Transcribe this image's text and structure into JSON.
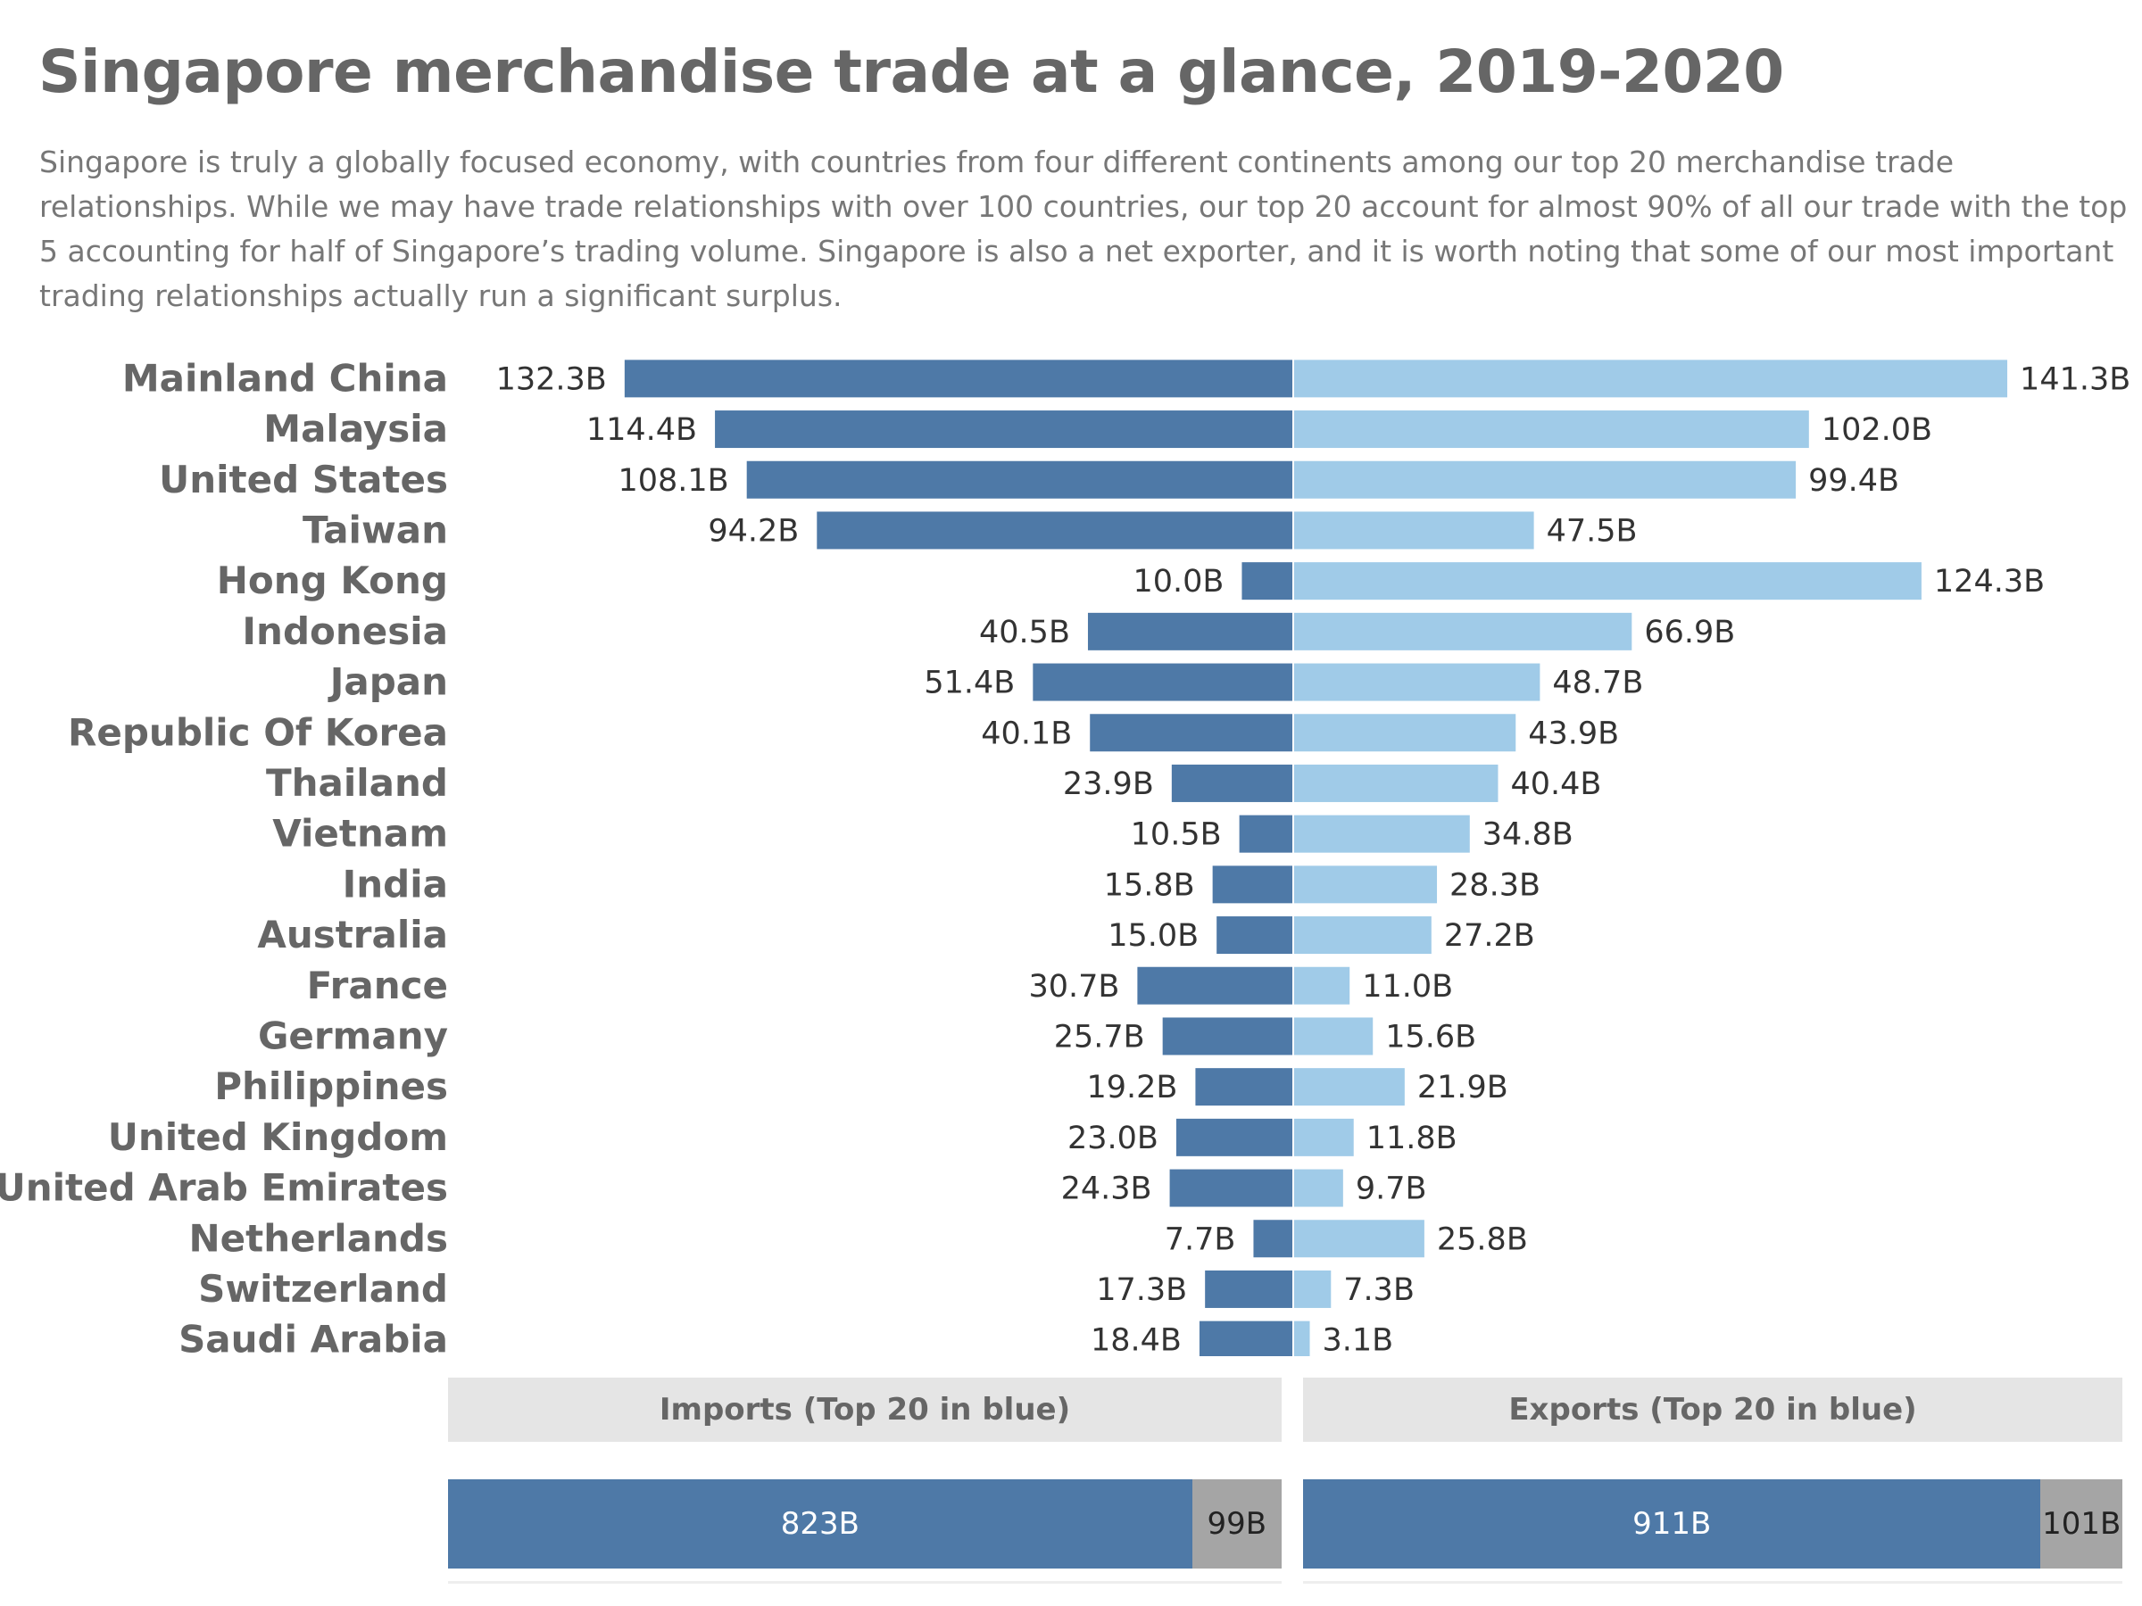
{
  "header": {
    "title": "Singapore merchandise trade at a glance, 2019-2020",
    "subtitle": "Singapore is truly a globally focused economy, with countries from four different continents among our top 20 merchandise trade relationships. While we may have trade relationships with over 100 countries, our top 20 account for almost 90% of all our trade with the top 5 accounting for half of Singapore’s trading volume. Singapore is also a net exporter, and it is worth noting that some of our most important trading relationships actually run a significant surplus."
  },
  "colors": {
    "imports": "#4e79a7",
    "exports": "#a0cbe8",
    "rest": "#a5a5a5"
  },
  "chart_data": [
    {
      "type": "bar",
      "orientation": "diverging-horizontal",
      "categories": [
        "Mainland China",
        "Malaysia",
        "United States",
        "Taiwan",
        "Hong Kong",
        "Indonesia",
        "Japan",
        "Republic Of Korea",
        "Thailand",
        "Vietnam",
        "India",
        "Australia",
        "France",
        "Germany",
        "Philippines",
        "United Kingdom",
        "United Arab Emirates",
        "Netherlands",
        "Switzerland",
        "Saudi Arabia"
      ],
      "series": [
        {
          "values": [
            132.3,
            114.4,
            108.1,
            94.2,
            10.0,
            40.5,
            51.4,
            40.1,
            23.9,
            10.5,
            15.8,
            15.0,
            30.7,
            25.7,
            19.2,
            23.0,
            24.3,
            7.7,
            17.3,
            18.4
          ],
          "labels": [
            "132.3B",
            "114.4B",
            "108.1B",
            "94.2B",
            "10.0B",
            "40.5B",
            "51.4B",
            "40.1B",
            "23.9B",
            "10.5B",
            "15.8B",
            "15.0B",
            "30.7B",
            "25.7B",
            "19.2B",
            "23.0B",
            "24.3B",
            "7.7B",
            "17.3B",
            "18.4B"
          ]
        },
        {
          "values": [
            141.3,
            102.0,
            99.4,
            47.5,
            124.3,
            66.9,
            48.7,
            43.9,
            40.4,
            34.8,
            28.3,
            27.2,
            11.0,
            15.6,
            21.9,
            11.8,
            9.7,
            25.8,
            7.3,
            3.1
          ],
          "labels": [
            "141.3B",
            "102.0B",
            "99.4B",
            "47.5B",
            "124.3B",
            "66.9B",
            "48.7B",
            "43.9B",
            "40.4B",
            "34.8B",
            "28.3B",
            "27.2B",
            "11.0B",
            "15.6B",
            "21.9B",
            "11.8B",
            "9.7B",
            "25.8B",
            "7.3B",
            "3.1B"
          ]
        }
      ]
    },
    {
      "type": "bar",
      "orientation": "stacked-horizontal",
      "title": "Imports (Top 20 in blue)",
      "values": [
        823,
        99
      ],
      "labels": [
        "823B",
        "99B"
      ]
    },
    {
      "type": "bar",
      "orientation": "stacked-horizontal",
      "title": "Exports (Top 20 in blue)",
      "values": [
        911,
        101
      ],
      "labels": [
        "911B",
        "101B"
      ]
    }
  ]
}
